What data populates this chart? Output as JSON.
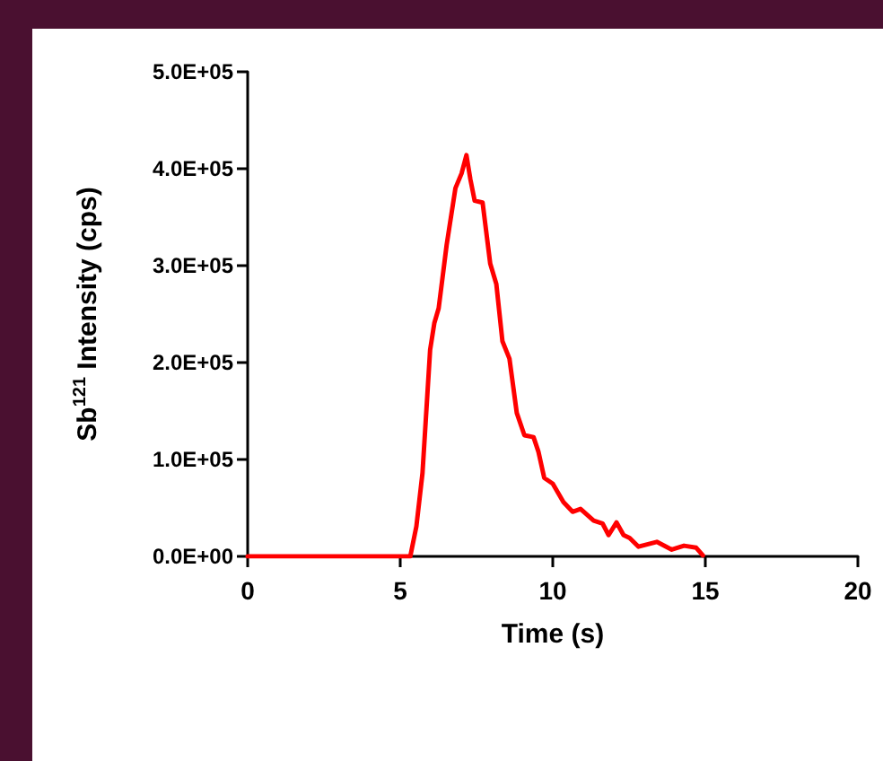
{
  "chart_data": {
    "type": "line",
    "xlabel": "Time (s)",
    "ylabel": "Sb$^{121}$ Intensity (cps)",
    "series": [
      {
        "color": "#ff0000",
        "x": [
          0,
          5.33,
          5.53,
          5.73,
          5.98,
          6.12,
          6.26,
          6.52,
          6.81,
          7.01,
          7.17,
          7.3,
          7.44,
          7.7,
          7.95,
          8.15,
          8.35,
          8.58,
          8.82,
          9.07,
          9.37,
          9.53,
          9.72,
          10,
          10.35,
          10.65,
          10.91,
          11.34,
          11.63,
          11.83,
          12.09,
          12.32,
          12.52,
          12.81,
          13.41,
          13.9,
          14.3,
          14.7,
          14.92
        ],
        "values": [
          0,
          0,
          31000,
          86000,
          213000,
          241000,
          256000,
          321000,
          380000,
          395000,
          414000,
          389000,
          367000,
          365000,
          302000,
          281000,
          222000,
          204000,
          148000,
          125000,
          123000,
          108000,
          81000,
          75000,
          56000,
          46000,
          49000,
          37000,
          34000,
          22000,
          35000,
          22000,
          19000,
          10000,
          15000,
          7000,
          11000,
          9000,
          1000
        ]
      }
    ],
    "xlim": [
      0,
      20
    ],
    "xticks": [
      0,
      5,
      10,
      15,
      20
    ],
    "ylim": [
      0,
      500000
    ],
    "yticks": [
      {
        "value": 0,
        "label": "0.0E+00"
      },
      {
        "value": 100000,
        "label": "1.0E+05"
      },
      {
        "value": 200000,
        "label": "2.0E+05"
      },
      {
        "value": 300000,
        "label": "3.0E+05"
      },
      {
        "value": 400000,
        "label": "4.0E+05"
      },
      {
        "value": 500000,
        "label": "5.0E+05"
      }
    ],
    "grid": false,
    "marker": "none",
    "line_style": "solid"
  }
}
